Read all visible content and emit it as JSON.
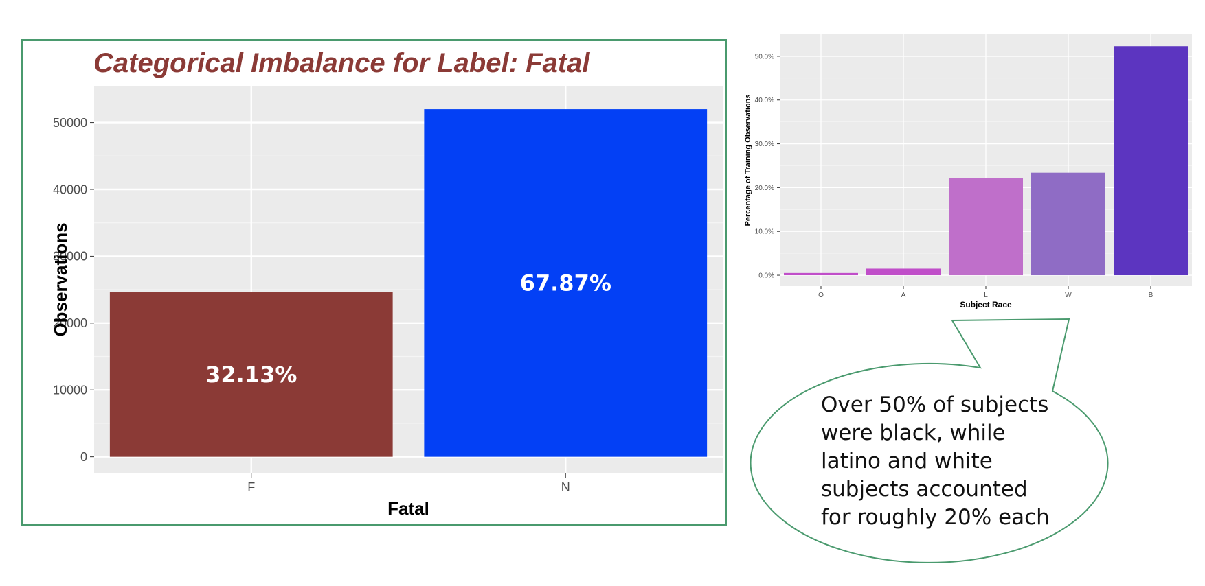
{
  "chart_data": [
    {
      "type": "bar",
      "title": "Categorical Imbalance for Label: Fatal",
      "xlabel": "Fatal",
      "ylabel": "Observations",
      "categories": [
        "F",
        "N"
      ],
      "values": [
        24600,
        52000
      ],
      "data_labels": [
        "32.13%",
        "67.87%"
      ],
      "colors": [
        "#8b3a36",
        "#0340f5"
      ],
      "ylim": [
        -2500,
        55500
      ],
      "yticks": [
        0,
        10000,
        20000,
        30000,
        40000,
        50000
      ],
      "ytick_labels": [
        "0",
        "10000",
        "20000",
        "30000",
        "40000",
        "50000"
      ],
      "title_color": "#8b3a36",
      "panel_color": "#ebebeb",
      "grid": true
    },
    {
      "type": "bar",
      "title": "",
      "xlabel": "Subject Race",
      "ylabel": "Percentage of Training Observations",
      "categories": [
        "O",
        "A",
        "L",
        "W",
        "B"
      ],
      "values": [
        0.5,
        1.5,
        22.2,
        23.4,
        52.3
      ],
      "colors": [
        "#c04ec9",
        "#c04ec9",
        "#bf6fca",
        "#8f6cc5",
        "#5c35c0"
      ],
      "ylim": [
        -2.5,
        55.0
      ],
      "yticks": [
        0,
        10,
        20,
        30,
        40,
        50
      ],
      "ytick_labels": [
        "0.0%",
        "10.0%",
        "20.0%",
        "30.0%",
        "40.0%",
        "50.0%"
      ],
      "panel_color": "#ebebeb",
      "grid": true
    }
  ],
  "callout": {
    "lines": [
      "Over 50% of subjects",
      "were black, while",
      "latino and white",
      "subjects accounted",
      "for roughly 20% each"
    ],
    "border_color": "#4a9a6e"
  }
}
